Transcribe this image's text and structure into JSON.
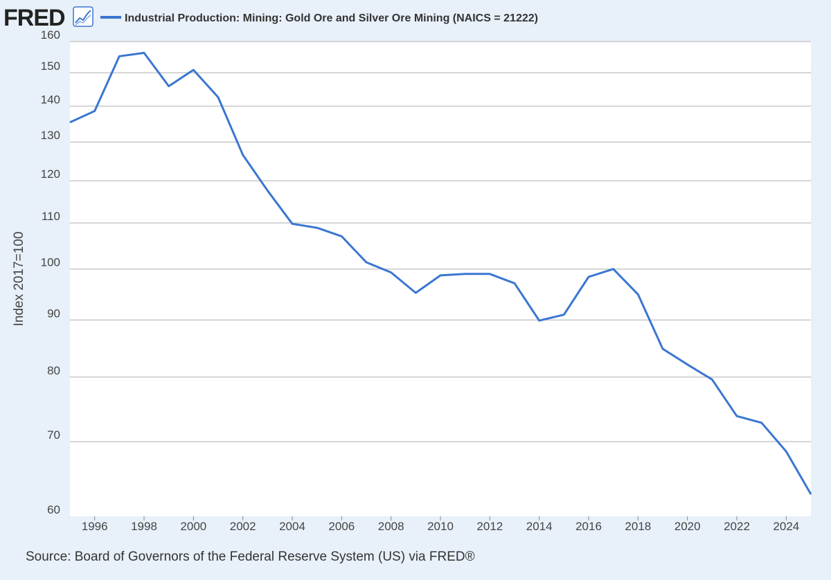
{
  "logo": {
    "text": "FRED",
    "icon": "line-chart-icon"
  },
  "source": "Source: Board of Governors of the Federal Reserve System (US) via FRED®",
  "colors": {
    "background": "#e8f0f9",
    "plot_background": "#ffffff",
    "series": "#3a76d1",
    "grid": "#c8c8c8"
  },
  "chart_data": {
    "type": "line",
    "title": "",
    "xlabel": "",
    "ylabel": "Index 2017=100",
    "yscale": "log",
    "ylim": [
      60,
      160
    ],
    "xlim": [
      1995,
      2025
    ],
    "grid": true,
    "legend": "top-left",
    "y_ticks": [
      60,
      70,
      80,
      90,
      100,
      110,
      120,
      130,
      140,
      150,
      160
    ],
    "x_ticks": [
      1996,
      1998,
      2000,
      2002,
      2004,
      2006,
      2008,
      2010,
      2012,
      2014,
      2016,
      2018,
      2020,
      2022,
      2024
    ],
    "series": [
      {
        "name": "Industrial Production: Mining: Gold Ore and Silver Ore Mining (NAICS = 21222)",
        "x": [
          1995,
          1996,
          1997,
          1998,
          1999,
          2000,
          2001,
          2002,
          2003,
          2004,
          2005,
          2006,
          2007,
          2008,
          2009,
          2010,
          2011,
          2012,
          2013,
          2014,
          2015,
          2016,
          2017,
          2018,
          2019,
          2020,
          2021,
          2022,
          2023,
          2024,
          2025
        ],
        "values": [
          135.4,
          138.6,
          155.2,
          156.3,
          145.9,
          150.9,
          142.6,
          126.6,
          117.6,
          109.8,
          108.9,
          107.0,
          101.4,
          99.3,
          95.2,
          98.7,
          99.0,
          99.0,
          97.1,
          89.9,
          91.0,
          98.4,
          100.0,
          94.9,
          84.8,
          82.1,
          79.6,
          73.8,
          72.8,
          68.6,
          62.8
        ]
      }
    ]
  }
}
